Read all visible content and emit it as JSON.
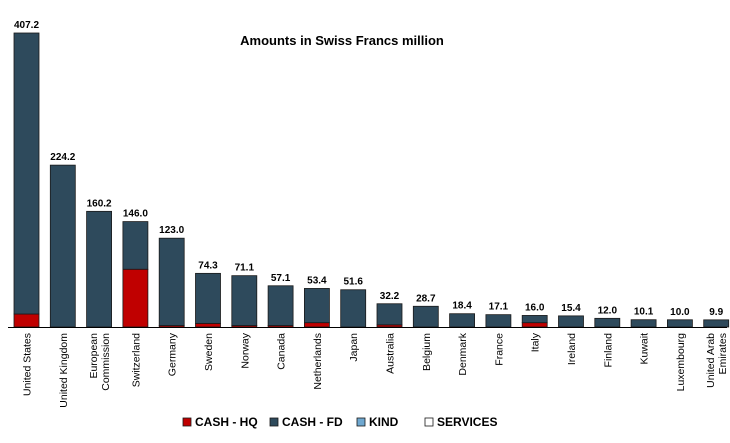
{
  "chart_data": {
    "type": "bar",
    "stacked": true,
    "title": "Amounts in Swiss Francs million",
    "categories": [
      "United States",
      "United Kingdom",
      "European Commission",
      "Switzerland",
      "Germany",
      "Sweden",
      "Norway",
      "Canada",
      "Netherlands",
      "Japan",
      "Australia",
      "Belgium",
      "Denmark",
      "France",
      "Italy",
      "Ireland",
      "Finland",
      "Kuwait",
      "Luxembourg",
      "United Arab Emirates"
    ],
    "totals": [
      "407.2",
      "224.2",
      "160.2",
      "146.0",
      "123.0",
      "74.3",
      "71.1",
      "57.1",
      "53.4",
      "51.6",
      "32.2",
      "28.7",
      "18.4",
      "17.1",
      "16.0",
      "15.4",
      "12.0",
      "10.1",
      "10.0",
      "9.9"
    ],
    "series": [
      {
        "name": "CASH - HQ",
        "color": "#c00000",
        "values": [
          18,
          0,
          0,
          80,
          2,
          5,
          2,
          2,
          6,
          0,
          3,
          0,
          0,
          0,
          6,
          0,
          0,
          0,
          0,
          0
        ]
      },
      {
        "name": "CASH - FD",
        "color": "#2e4a5c",
        "values": [
          389.2,
          224.2,
          160.2,
          66.0,
          121.0,
          69.3,
          69.1,
          55.1,
          47.4,
          51.6,
          29.2,
          28.7,
          18.4,
          17.1,
          10.0,
          15.4,
          12.0,
          10.1,
          10.0,
          9.9
        ]
      },
      {
        "name": "KIND",
        "color": "#6fa8d0",
        "values": [
          0,
          0,
          0,
          0,
          0,
          0,
          0,
          0,
          0,
          0,
          0,
          0,
          0,
          0,
          0,
          0,
          0,
          0,
          0,
          0
        ]
      },
      {
        "name": "SERVICES",
        "color": "#ffffff",
        "values": [
          0,
          0,
          0,
          0,
          0,
          0,
          0,
          0,
          0,
          0,
          0,
          0,
          0,
          0,
          0,
          0,
          0,
          0,
          0,
          0
        ]
      }
    ],
    "ylim": [
      0,
      407.2
    ],
    "grid": false,
    "legend_position": "bottom"
  }
}
